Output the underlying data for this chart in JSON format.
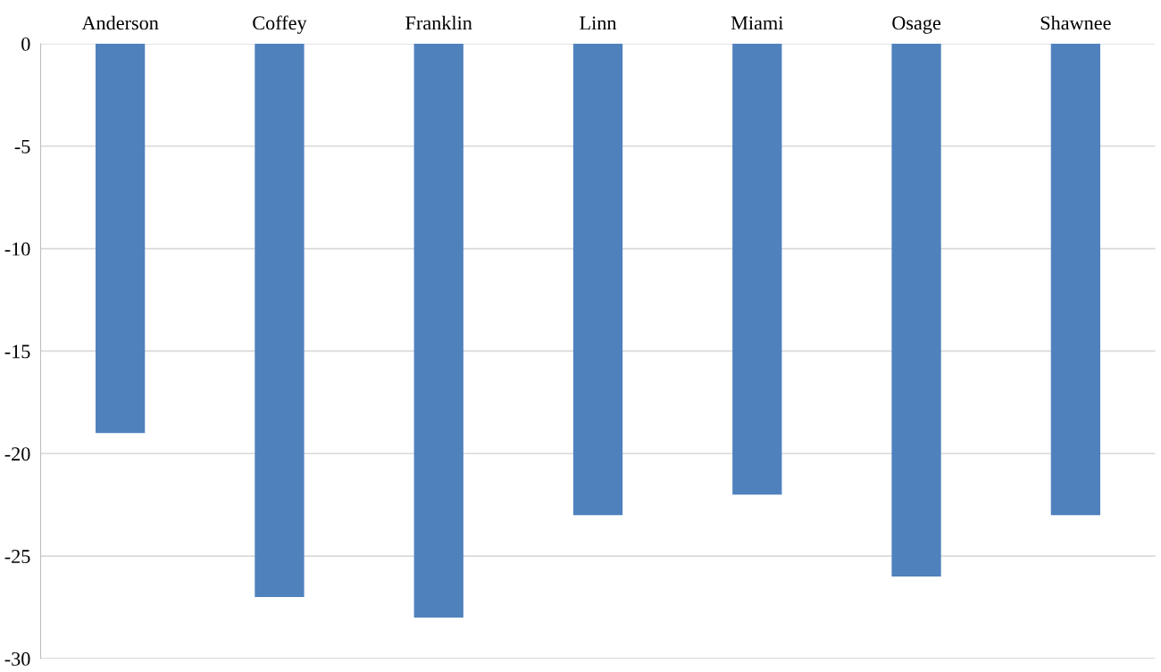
{
  "chart_data": {
    "type": "bar",
    "categories": [
      "Anderson",
      "Coffey",
      "Franklin",
      "Linn",
      "Miami",
      "Osage",
      "Shawnee"
    ],
    "values": [
      -19,
      -27,
      -28,
      -23,
      -22,
      -26,
      -23
    ],
    "color": "#4f81bd",
    "ylim": [
      -30,
      0
    ],
    "yticks": [
      -30,
      -25,
      -20,
      -15,
      -10,
      -5,
      0
    ],
    "grid": "y"
  }
}
